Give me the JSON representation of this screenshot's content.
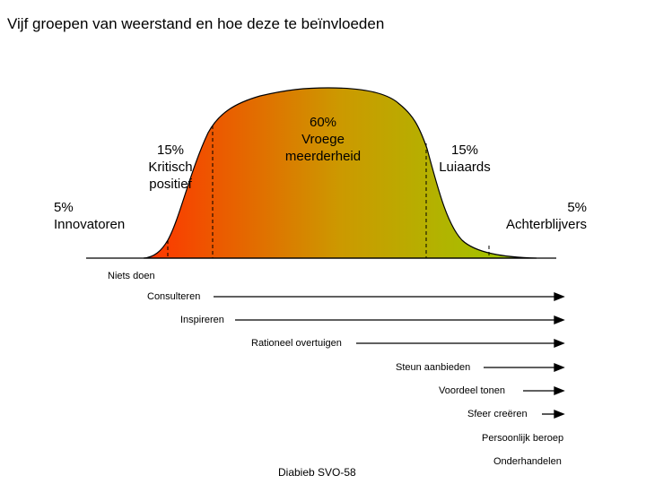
{
  "title": "Vijf groepen van weerstand en hoe deze te beïnvloeden",
  "colors": {
    "gradient_start": "#ff3300",
    "gradient_mid": "#cc9900",
    "gradient_end": "#99cc00",
    "outline": "#000000"
  },
  "segments": [
    {
      "pct": "5%",
      "name": "Innovatoren"
    },
    {
      "pct": "15%",
      "name": "Kritisch positief"
    },
    {
      "pct": "60%",
      "name": "Vroege meerderheid"
    },
    {
      "pct": "15%",
      "name": "Luiaards"
    },
    {
      "pct": "5%",
      "name": "Achterblijvers"
    }
  ],
  "labels": {
    "innovatoren_pct": "5%",
    "innovatoren_name": "Innovatoren",
    "kritisch_pct": "15%",
    "kritisch_name_1": "Kritisch",
    "kritisch_name_2": "positief",
    "vroege_pct": "60%",
    "vroege_name_1": "Vroege",
    "vroege_name_2": "meerderheid",
    "luiaards_pct": "15%",
    "luiaards_name": "Luiaards",
    "achter_pct": "5%",
    "achter_name": "Achterblijvers"
  },
  "actions": [
    {
      "label": "Niets doen",
      "has_arrow": false
    },
    {
      "label": "Consulteren",
      "has_arrow": true
    },
    {
      "label": "Inspireren",
      "has_arrow": true
    },
    {
      "label": "Rationeel overtuigen",
      "has_arrow": true
    },
    {
      "label": "Steun aanbieden",
      "has_arrow": true
    },
    {
      "label": "Voordeel tonen",
      "has_arrow": true
    },
    {
      "label": "Sfeer creëren",
      "has_arrow": true
    },
    {
      "label": "Persoonlijk beroep",
      "has_arrow": false
    },
    {
      "label": "Onderhandelen",
      "has_arrow": false
    }
  ],
  "footer": "Diabieb SVO-58"
}
